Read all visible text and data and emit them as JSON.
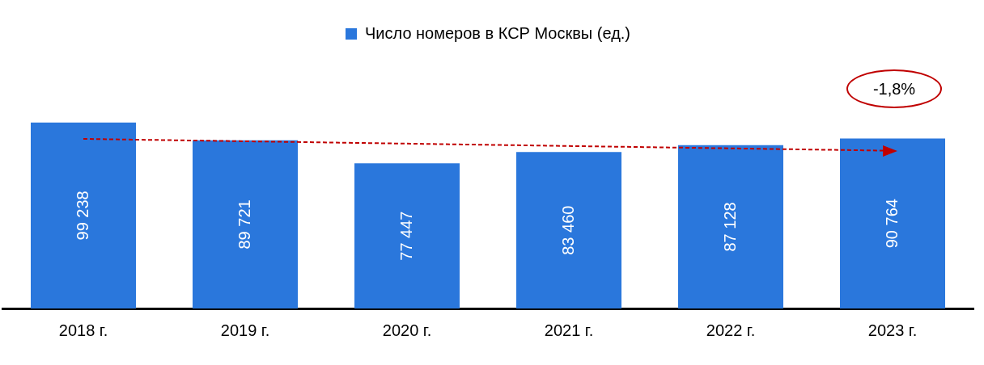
{
  "chart_data": {
    "type": "bar",
    "categories": [
      "2018 г.",
      "2019 г.",
      "2020 г.",
      "2021 г.",
      "2022 г.",
      "2023 г."
    ],
    "series": [
      {
        "name": "Число номеров в КСР Москвы (ед.)",
        "color": "#2a77dc",
        "values": [
          99238,
          89721,
          77447,
          83460,
          87128,
          90764
        ],
        "value_labels": [
          "99 238",
          "89 721",
          "77 447",
          "83 460",
          "87 128",
          "90 764"
        ]
      }
    ],
    "annotations": [
      "-1,8%"
    ],
    "legend": "top",
    "grid": false
  }
}
